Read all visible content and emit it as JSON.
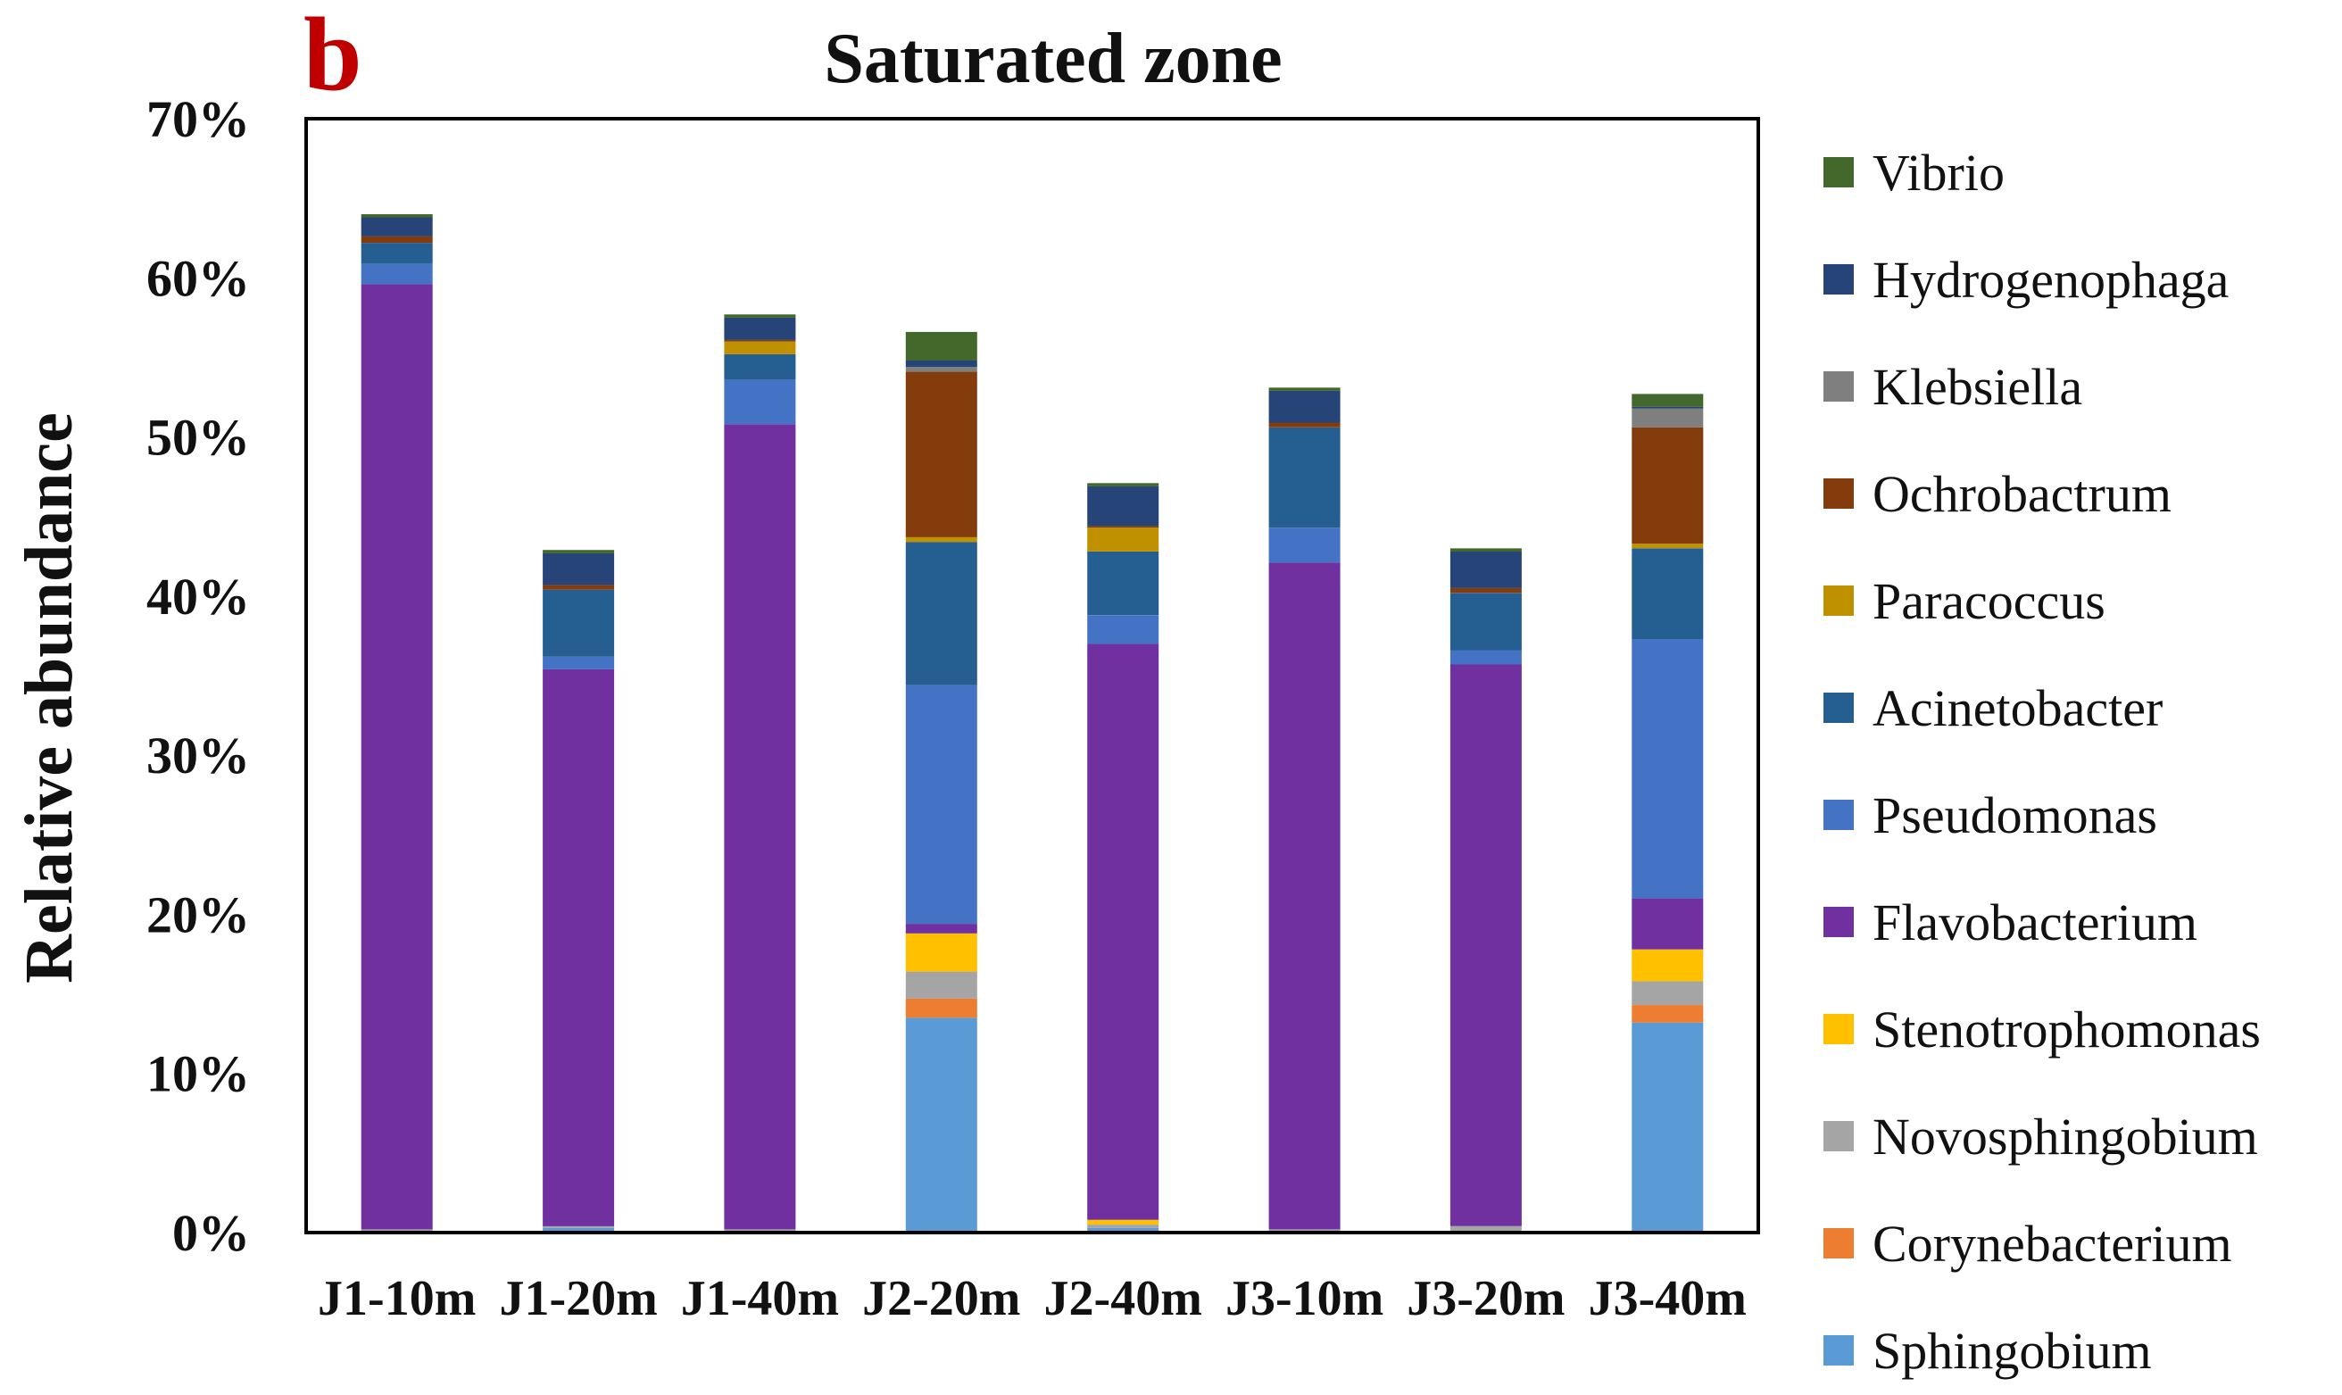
{
  "panel_letter": "b",
  "chart_data": {
    "type": "bar",
    "stacked": true,
    "title": "Saturated zone",
    "xlabel": "",
    "ylabel": "Relative abundance",
    "ylim": [
      0,
      70
    ],
    "yticks": [
      "0%",
      "10%",
      "20%",
      "30%",
      "40%",
      "50%",
      "60%",
      "70%"
    ],
    "categories": [
      "J1-10m",
      "J1-20m",
      "J1-40m",
      "J2-20m",
      "J2-40m",
      "J3-10m",
      "J3-20m",
      "J3-40m"
    ],
    "legend_position": "right",
    "series": [
      {
        "name": "Sphingobium",
        "color": "#5b9bd5",
        "values": [
          0.1,
          0.3,
          0.1,
          13.5,
          0.3,
          0.1,
          0.1,
          13.2
        ]
      },
      {
        "name": "Corynebacterium",
        "color": "#ed7d31",
        "values": [
          0.0,
          0.0,
          0.0,
          1.2,
          0.0,
          0.0,
          0.0,
          1.1
        ]
      },
      {
        "name": "Novosphingobium",
        "color": "#a5a5a5",
        "values": [
          0.1,
          0.1,
          0.1,
          1.7,
          0.2,
          0.1,
          0.3,
          1.5
        ]
      },
      {
        "name": "Stenotrophomonas",
        "color": "#ffc000",
        "values": [
          0.0,
          0.0,
          0.0,
          2.4,
          0.3,
          0.0,
          0.0,
          2.0
        ]
      },
      {
        "name": "Flavobacterium",
        "color": "#7030a0",
        "values": [
          59.4,
          35.0,
          50.6,
          0.6,
          36.2,
          41.9,
          35.3,
          3.2
        ]
      },
      {
        "name": "Pseudomonas",
        "color": "#4472c4",
        "values": [
          1.3,
          0.8,
          2.8,
          15.0,
          1.8,
          2.2,
          0.9,
          16.3
        ]
      },
      {
        "name": "Acinetobacter",
        "color": "#255e91",
        "values": [
          1.3,
          4.2,
          1.6,
          9.0,
          4.0,
          6.3,
          3.6,
          5.7
        ]
      },
      {
        "name": "Paracoccus",
        "color": "#bf9000",
        "values": [
          0.0,
          0.0,
          0.8,
          0.3,
          1.5,
          0.0,
          0.0,
          0.3
        ]
      },
      {
        "name": "Ochrobactrum",
        "color": "#843c0c",
        "values": [
          0.4,
          0.3,
          0.1,
          10.4,
          0.1,
          0.3,
          0.3,
          7.3
        ]
      },
      {
        "name": "Klebsiella",
        "color": "#7f7f7f",
        "values": [
          0.0,
          0.0,
          0.0,
          0.3,
          0.0,
          0.0,
          0.0,
          1.2
        ]
      },
      {
        "name": "Hydrogenophaga",
        "color": "#264478",
        "values": [
          1.2,
          2.0,
          1.4,
          0.4,
          2.5,
          2.0,
          2.3,
          0.1
        ]
      },
      {
        "name": "Vibrio",
        "color": "#43682b",
        "values": [
          0.2,
          0.2,
          0.2,
          1.8,
          0.2,
          0.2,
          0.2,
          0.8
        ]
      }
    ]
  }
}
